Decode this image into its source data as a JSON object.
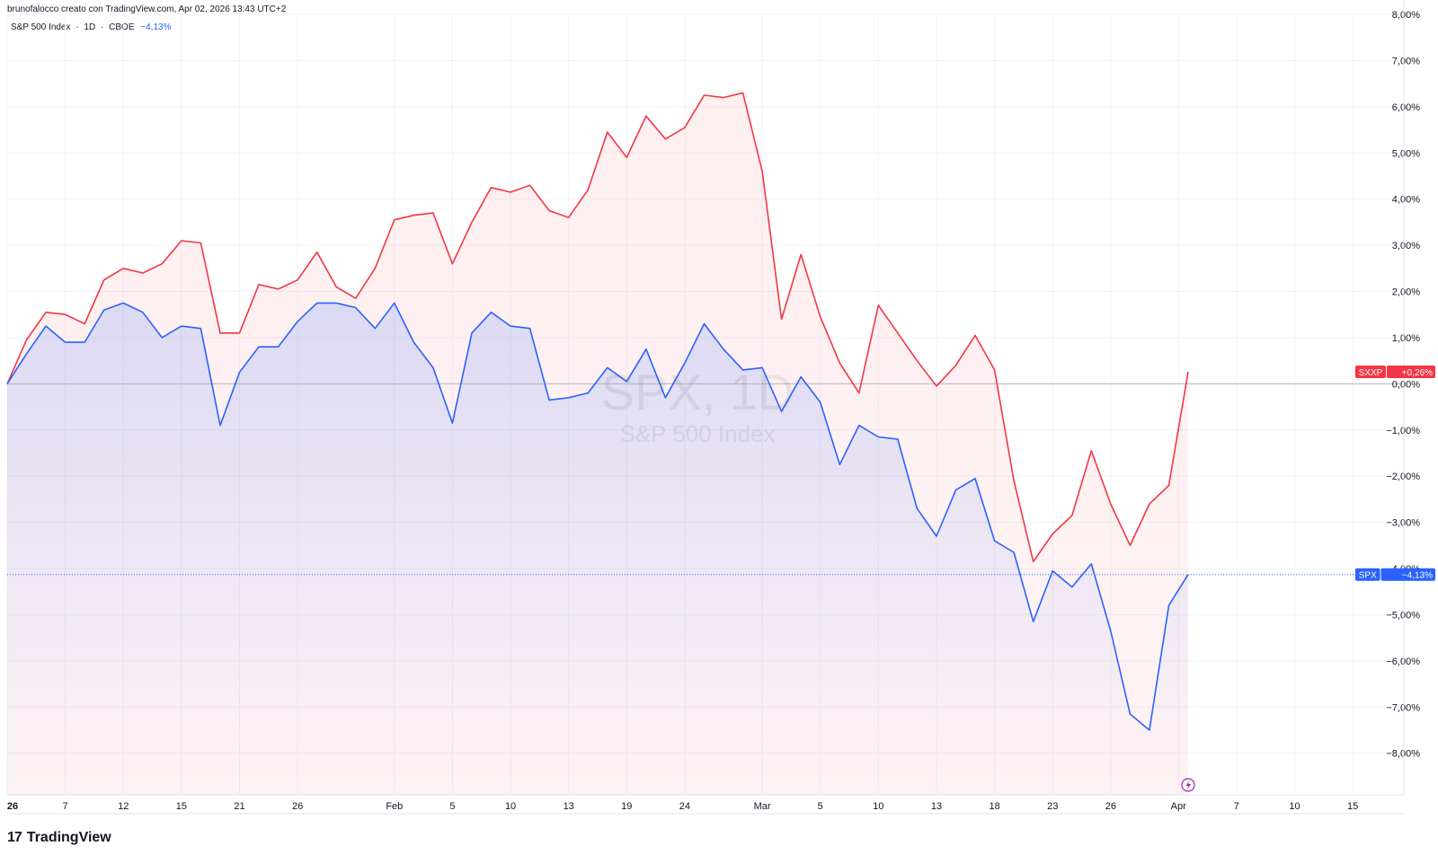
{
  "header": {
    "credit": "brunofalocco creato con TradingView.com, Apr 02, 2026 13:43 UTC+2"
  },
  "legend": {
    "name": "S&P 500 Index",
    "sep1": "·",
    "interval": "1D",
    "sep2": "·",
    "exchange": "CBOE",
    "change": "−4,13%"
  },
  "watermark": {
    "symbol": "SPX, 1D",
    "name": "S&P 500 Index"
  },
  "footer": {
    "logo_text": "TradingView",
    "logo_mark": "17"
  },
  "colors": {
    "spx": "#2962ff",
    "sxxp": "#f23645",
    "axis_text": "#131722",
    "grid": "#f0f3fa"
  },
  "chart_data": {
    "type": "line",
    "y_unit": "%",
    "ylim": [
      -8.9,
      8.0
    ],
    "y_ticks": [
      "8,00%",
      "7,00%",
      "6,00%",
      "5,00%",
      "4,00%",
      "3,00%",
      "2,00%",
      "1,00%",
      "0,00%",
      "−1,00%",
      "−2,00%",
      "−3,00%",
      "−4,00%",
      "−5,00%",
      "−6,00%",
      "−7,00%",
      "−8,00%"
    ],
    "x_ticks": [
      "26",
      "7",
      "12",
      "15",
      "21",
      "26",
      "Feb",
      "5",
      "10",
      "13",
      "19",
      "24",
      "Mar",
      "5",
      "10",
      "13",
      "18",
      "23",
      "26",
      "Apr",
      "7",
      "10",
      "15"
    ],
    "grid": true,
    "series": [
      {
        "name": "SXXP",
        "label": "SXXP",
        "value_label": "+0,26%",
        "color": "#f23645",
        "values": [
          0.0,
          0.95,
          1.55,
          1.5,
          1.3,
          2.25,
          2.5,
          2.4,
          2.6,
          3.1,
          3.05,
          1.1,
          1.1,
          2.15,
          2.05,
          2.25,
          2.85,
          2.1,
          1.85,
          2.5,
          3.55,
          3.65,
          3.7,
          2.6,
          3.5,
          4.25,
          4.15,
          4.3,
          3.75,
          3.6,
          4.2,
          5.45,
          4.9,
          5.8,
          5.3,
          5.55,
          6.25,
          6.2,
          6.3,
          4.6,
          1.4,
          2.8,
          1.45,
          0.45,
          -0.2,
          1.7,
          1.1,
          0.5,
          -0.05,
          0.4,
          1.05,
          0.3,
          -2.1,
          -3.85,
          -3.25,
          -2.85,
          -1.45,
          -2.6,
          -3.5,
          -2.6,
          -2.2,
          0.26
        ]
      },
      {
        "name": "SPX",
        "label": "SPX",
        "value_label": "−4,13%",
        "color": "#2962ff",
        "values": [
          0.0,
          0.65,
          1.25,
          0.9,
          0.9,
          1.6,
          1.75,
          1.55,
          1.0,
          1.25,
          1.2,
          -0.9,
          0.25,
          0.8,
          0.8,
          1.35,
          1.75,
          1.75,
          1.65,
          1.2,
          1.75,
          0.9,
          0.35,
          -0.85,
          1.1,
          1.55,
          1.25,
          1.2,
          -0.35,
          -0.3,
          -0.2,
          0.35,
          0.05,
          0.75,
          -0.3,
          0.45,
          1.3,
          0.75,
          0.3,
          0.35,
          -0.6,
          0.15,
          -0.4,
          -1.75,
          -0.9,
          -1.15,
          -1.2,
          -2.7,
          -3.3,
          -2.3,
          -2.05,
          -3.4,
          -3.65,
          -5.15,
          -4.05,
          -4.4,
          -3.9,
          -5.35,
          -7.15,
          -7.5,
          -4.8,
          -4.13
        ]
      }
    ]
  }
}
